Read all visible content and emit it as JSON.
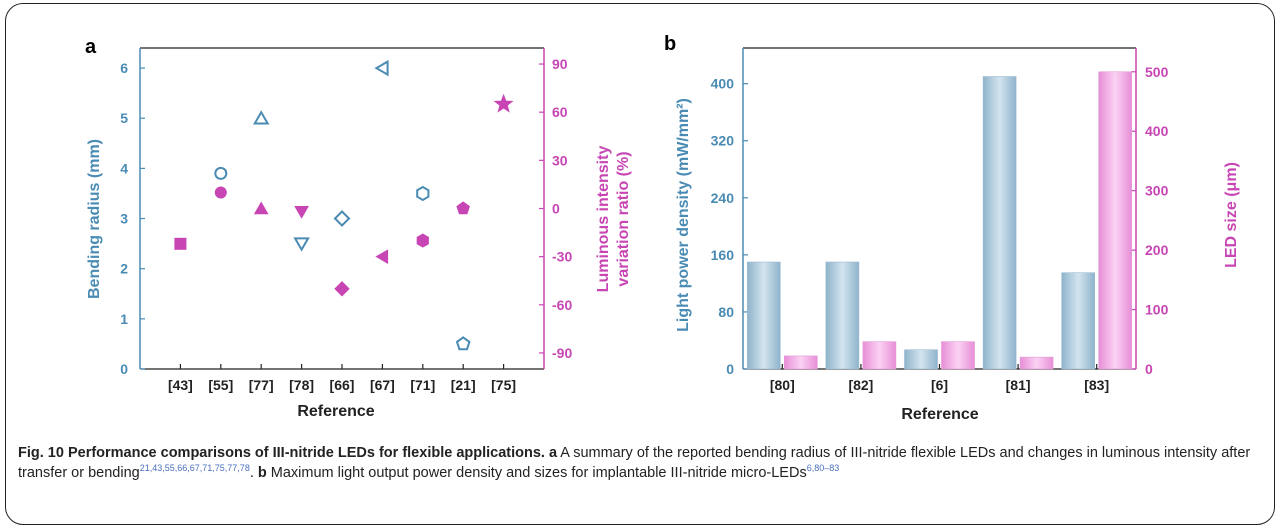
{
  "colors": {
    "blue": "#4a8bb3",
    "magenta": "#c845b4",
    "bar_blue": "#a8c7db",
    "bar_pink": "#f0a5e3"
  },
  "caption": {
    "title": "Fig. 10 Performance comparisons of III-nitride LEDs for flexible applications.",
    "a_label": "a",
    "a_text": " A summary of the reported bending radius of III-nitride flexible LEDs and changes in luminous intensity after transfer or bending",
    "a_refs": "21,43,55,66,67,71,75,77,78",
    "sep": ". ",
    "b_label": "b",
    "b_text": " Maximum light output power density and sizes for implantable III-nitride micro-LEDs",
    "b_refs": "6,80–83"
  },
  "chart_data": [
    {
      "type": "scatter",
      "panel": "a",
      "xlabel": "Reference",
      "ylabel_left": "Bending radius (mm)",
      "ylabel_right_lines": [
        "Luminous intensity",
        "variation ratio (%)"
      ],
      "categories": [
        "[43]",
        "[55]",
        "[77]",
        "[78]",
        "[66]",
        "[67]",
        "[71]",
        "[21]",
        "[75]"
      ],
      "ylim_left": [
        0,
        6.4
      ],
      "yticks_left": [
        0,
        1,
        2,
        3,
        4,
        5,
        6
      ],
      "ylim_right": [
        -100,
        100
      ],
      "yticks_right": [
        -90,
        -60,
        -30,
        0,
        30,
        60,
        90
      ],
      "series": [
        {
          "axis": "left",
          "color": "blue",
          "style": "open",
          "points": [
            {
              "ref": "[55]",
              "value": 3.9,
              "marker": "circle"
            },
            {
              "ref": "[77]",
              "value": 5.0,
              "marker": "triangle-up"
            },
            {
              "ref": "[78]",
              "value": 2.5,
              "marker": "triangle-down"
            },
            {
              "ref": "[66]",
              "value": 3.0,
              "marker": "diamond"
            },
            {
              "ref": "[67]",
              "value": 6.0,
              "marker": "triangle-left"
            },
            {
              "ref": "[71]",
              "value": 3.5,
              "marker": "hexagon"
            },
            {
              "ref": "[21]",
              "value": 0.5,
              "marker": "pentagon"
            }
          ]
        },
        {
          "axis": "right",
          "color": "magenta",
          "style": "filled",
          "points": [
            {
              "ref": "[43]",
              "value": -22,
              "marker": "square"
            },
            {
              "ref": "[55]",
              "value": 10,
              "marker": "circle"
            },
            {
              "ref": "[77]",
              "value": 0,
              "marker": "triangle-up"
            },
            {
              "ref": "[78]",
              "value": -2,
              "marker": "triangle-down"
            },
            {
              "ref": "[66]",
              "value": -50,
              "marker": "diamond"
            },
            {
              "ref": "[67]",
              "value": -30,
              "marker": "triangle-left"
            },
            {
              "ref": "[71]",
              "value": -20,
              "marker": "hexagon"
            },
            {
              "ref": "[21]",
              "value": 0,
              "marker": "pentagon"
            },
            {
              "ref": "[75]",
              "value": 65,
              "marker": "star"
            }
          ]
        }
      ]
    },
    {
      "type": "bar",
      "panel": "b",
      "xlabel": "Reference",
      "ylabel_left": "Light power density (mW/mm²)",
      "ylabel_right": "LED size (μm)",
      "categories": [
        "[80]",
        "[82]",
        "[6]",
        "[81]",
        "[83]"
      ],
      "ylim_left": [
        0,
        450
      ],
      "yticks_left": [
        0,
        80,
        160,
        240,
        320,
        400
      ],
      "ylim_right": [
        0,
        540
      ],
      "yticks_right": [
        0,
        100,
        200,
        300,
        400,
        500
      ],
      "series": [
        {
          "axis": "left",
          "color": "bar_blue",
          "values": [
            150,
            150,
            27,
            410,
            135
          ]
        },
        {
          "axis": "right",
          "color": "bar_pink",
          "values": [
            22,
            46,
            46,
            20,
            500
          ]
        }
      ]
    }
  ]
}
